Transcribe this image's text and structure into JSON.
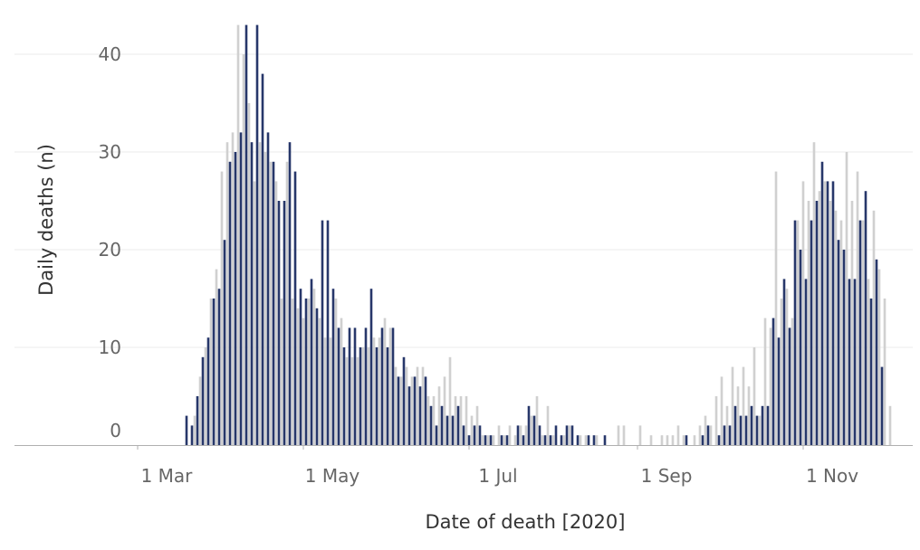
{
  "chart_data": {
    "type": "bar",
    "xlabel": "Date of death [2020]",
    "ylabel": "Daily deaths (n)",
    "ylim": [
      0,
      45
    ],
    "grid": true,
    "x_ticks": [
      {
        "date": "2020-03-01",
        "label": "1 Mar"
      },
      {
        "date": "2020-05-01",
        "label": "1 May"
      },
      {
        "date": "2020-07-01",
        "label": "1 Jul"
      },
      {
        "date": "2020-09-01",
        "label": "1 Sep"
      },
      {
        "date": "2020-11-01",
        "label": "1 Nov"
      }
    ],
    "y_ticks": [
      0,
      10,
      20,
      30,
      40
    ],
    "colors": {
      "primary": "#27376a",
      "secondary": "#d0d0d0"
    },
    "series": [
      {
        "x": [
          "2020-03-19",
          "2020-03-21",
          "2020-03-23",
          "2020-03-25",
          "2020-03-27",
          "2020-03-29",
          "2020-03-31",
          "2020-04-02",
          "2020-04-04",
          "2020-04-06",
          "2020-04-08",
          "2020-04-10",
          "2020-04-12",
          "2020-04-14",
          "2020-04-16",
          "2020-04-18",
          "2020-04-20",
          "2020-04-22",
          "2020-04-24",
          "2020-04-26",
          "2020-04-28",
          "2020-04-30",
          "2020-05-02",
          "2020-05-04",
          "2020-05-06",
          "2020-05-08",
          "2020-05-10",
          "2020-05-12",
          "2020-05-14",
          "2020-05-16",
          "2020-05-18",
          "2020-05-20",
          "2020-05-22",
          "2020-05-24",
          "2020-05-26",
          "2020-05-28",
          "2020-05-30",
          "2020-06-01",
          "2020-06-03",
          "2020-06-05",
          "2020-06-07",
          "2020-06-09",
          "2020-06-11",
          "2020-06-13",
          "2020-06-15",
          "2020-06-17",
          "2020-06-19",
          "2020-06-21",
          "2020-06-23",
          "2020-06-25",
          "2020-06-27",
          "2020-06-29",
          "2020-07-01",
          "2020-07-03",
          "2020-07-05",
          "2020-07-07",
          "2020-07-09",
          "2020-07-11",
          "2020-07-13",
          "2020-07-15",
          "2020-07-17",
          "2020-07-19",
          "2020-07-21",
          "2020-07-23",
          "2020-07-25",
          "2020-07-27",
          "2020-07-29",
          "2020-07-31",
          "2020-08-02",
          "2020-08-04",
          "2020-08-06",
          "2020-08-08",
          "2020-08-10",
          "2020-08-12",
          "2020-08-14",
          "2020-08-16",
          "2020-08-18",
          "2020-08-20",
          "2020-08-22",
          "2020-08-24",
          "2020-08-26",
          "2020-08-28",
          "2020-08-30",
          "2020-09-01",
          "2020-09-03",
          "2020-09-05",
          "2020-09-07",
          "2020-09-09",
          "2020-09-11",
          "2020-09-13",
          "2020-09-15",
          "2020-09-17",
          "2020-09-19",
          "2020-09-21",
          "2020-09-23",
          "2020-09-25",
          "2020-09-27",
          "2020-09-29",
          "2020-10-01",
          "2020-10-03",
          "2020-10-05",
          "2020-10-07",
          "2020-10-09",
          "2020-10-11",
          "2020-10-13",
          "2020-10-15",
          "2020-10-17",
          "2020-10-19",
          "2020-10-21",
          "2020-10-23",
          "2020-10-25",
          "2020-10-27",
          "2020-10-29",
          "2020-10-31",
          "2020-11-02",
          "2020-11-04",
          "2020-11-06",
          "2020-11-08",
          "2020-11-10",
          "2020-11-12",
          "2020-11-14",
          "2020-11-16",
          "2020-11-18",
          "2020-11-20",
          "2020-11-22",
          "2020-11-24",
          "2020-11-26",
          "2020-11-28",
          "2020-11-30",
          "2020-12-02"
        ],
        "values": [
          3,
          2,
          5,
          9,
          11,
          15,
          16,
          21,
          29,
          30,
          32,
          43,
          31,
          43,
          38,
          32,
          29,
          25,
          25,
          31,
          28,
          16,
          15,
          17,
          14,
          23,
          23,
          16,
          12,
          10,
          12,
          12,
          10,
          12,
          16,
          10,
          12,
          10,
          12,
          7,
          9,
          6,
          7,
          6,
          7,
          4,
          2,
          4,
          3,
          3,
          4,
          2,
          1,
          2,
          2,
          1,
          1,
          0,
          1,
          1,
          0,
          2,
          1,
          4,
          3,
          2,
          1,
          1,
          2,
          1,
          2,
          2,
          1,
          0,
          1,
          1,
          0,
          1,
          0,
          0,
          0,
          0,
          0,
          0,
          0,
          0,
          0,
          0,
          0,
          0,
          0,
          0,
          1,
          0,
          0,
          1,
          2,
          0,
          1,
          2,
          2,
          4,
          3,
          3,
          4,
          3,
          4,
          4,
          13,
          11,
          17,
          12,
          23,
          20,
          17,
          23,
          25,
          29,
          27,
          27,
          21,
          20,
          17,
          17,
          23,
          26,
          15,
          19,
          8,
          0
        ],
        "color": "#27376a"
      },
      {
        "x": [
          "2020-03-20",
          "2020-03-22",
          "2020-03-24",
          "2020-03-26",
          "2020-03-28",
          "2020-03-30",
          "2020-04-01",
          "2020-04-03",
          "2020-04-05",
          "2020-04-07",
          "2020-04-09",
          "2020-04-11",
          "2020-04-13",
          "2020-04-15",
          "2020-04-17",
          "2020-04-19",
          "2020-04-21",
          "2020-04-23",
          "2020-04-25",
          "2020-04-27",
          "2020-04-29",
          "2020-05-01",
          "2020-05-03",
          "2020-05-05",
          "2020-05-07",
          "2020-05-09",
          "2020-05-11",
          "2020-05-13",
          "2020-05-15",
          "2020-05-17",
          "2020-05-19",
          "2020-05-21",
          "2020-05-23",
          "2020-05-25",
          "2020-05-27",
          "2020-05-29",
          "2020-05-31",
          "2020-06-02",
          "2020-06-04",
          "2020-06-06",
          "2020-06-08",
          "2020-06-10",
          "2020-06-12",
          "2020-06-14",
          "2020-06-16",
          "2020-06-18",
          "2020-06-20",
          "2020-06-22",
          "2020-06-24",
          "2020-06-26",
          "2020-06-28",
          "2020-06-30",
          "2020-07-02",
          "2020-07-04",
          "2020-07-06",
          "2020-07-08",
          "2020-07-10",
          "2020-07-12",
          "2020-07-14",
          "2020-07-16",
          "2020-07-18",
          "2020-07-20",
          "2020-07-22",
          "2020-07-24",
          "2020-07-26",
          "2020-07-28",
          "2020-07-30",
          "2020-08-01",
          "2020-08-03",
          "2020-08-05",
          "2020-08-07",
          "2020-08-09",
          "2020-08-11",
          "2020-08-13",
          "2020-08-15",
          "2020-08-17",
          "2020-08-19",
          "2020-08-21",
          "2020-08-23",
          "2020-08-25",
          "2020-08-27",
          "2020-08-29",
          "2020-08-31",
          "2020-09-02",
          "2020-09-04",
          "2020-09-06",
          "2020-09-08",
          "2020-09-10",
          "2020-09-12",
          "2020-09-14",
          "2020-09-16",
          "2020-09-18",
          "2020-09-20",
          "2020-09-22",
          "2020-09-24",
          "2020-09-26",
          "2020-09-28",
          "2020-09-30",
          "2020-10-02",
          "2020-10-04",
          "2020-10-06",
          "2020-10-08",
          "2020-10-10",
          "2020-10-12",
          "2020-10-14",
          "2020-10-16",
          "2020-10-18",
          "2020-10-20",
          "2020-10-22",
          "2020-10-24",
          "2020-10-26",
          "2020-10-28",
          "2020-10-30",
          "2020-11-01",
          "2020-11-03",
          "2020-11-05",
          "2020-11-07",
          "2020-11-09",
          "2020-11-11",
          "2020-11-13",
          "2020-11-15",
          "2020-11-17",
          "2020-11-19",
          "2020-11-21",
          "2020-11-23",
          "2020-11-25",
          "2020-11-27",
          "2020-11-29",
          "2020-12-01",
          "2020-12-03"
        ],
        "values": [
          0,
          3,
          7,
          10,
          15,
          18,
          28,
          31,
          32,
          43,
          40,
          35,
          27,
          31,
          30,
          29,
          27,
          15,
          29,
          15,
          14,
          13,
          15,
          16,
          13,
          11,
          11,
          15,
          13,
          9,
          9,
          9,
          10,
          10,
          11,
          11,
          13,
          12,
          8,
          7,
          8,
          7,
          8,
          8,
          5,
          5,
          6,
          7,
          9,
          5,
          5,
          5,
          3,
          4,
          1,
          1,
          1,
          2,
          1,
          2,
          1,
          2,
          2,
          3,
          5,
          1,
          4,
          1,
          0,
          1,
          2,
          0,
          1,
          1,
          0,
          1,
          0,
          0,
          0,
          2,
          2,
          0,
          0,
          2,
          0,
          1,
          0,
          1,
          1,
          1,
          2,
          1,
          0,
          1,
          2,
          3,
          2,
          5,
          7,
          4,
          8,
          6,
          8,
          6,
          10,
          3,
          13,
          12,
          28,
          15,
          16,
          13,
          23,
          27,
          25,
          31,
          26,
          27,
          25,
          24,
          23,
          30,
          25,
          28,
          23,
          17,
          24,
          18,
          15,
          4
        ]
      }
    ]
  }
}
